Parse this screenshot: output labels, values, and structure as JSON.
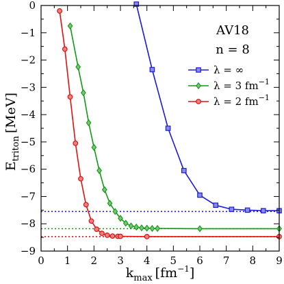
{
  "chart_data": {
    "type": "line",
    "annotations": [
      "AV18",
      "n = 8"
    ],
    "xlabel": {
      "main": "k",
      "sub": "max",
      "unit": "[fm",
      "sup": "−1",
      "close": "]"
    },
    "ylabel": {
      "main": "E",
      "sub": "triton",
      "unit": "[MeV]"
    },
    "xlim": [
      0,
      9
    ],
    "ylim": [
      -9,
      0
    ],
    "x_ticks": [
      0,
      1,
      2,
      3,
      4,
      5,
      6,
      7,
      8,
      9
    ],
    "y_ticks": [
      0,
      -1,
      -2,
      -3,
      -4,
      -5,
      -6,
      -7,
      -8,
      -9
    ],
    "x_tick_labels": [
      "0",
      "1",
      "2",
      "3",
      "4",
      "5",
      "6",
      "7",
      "8",
      "9"
    ],
    "y_tick_labels": [
      "0",
      "−1",
      "−2",
      "−3",
      "−4",
      "−5",
      "−6",
      "−7",
      "−8",
      "−9"
    ],
    "legend_position": "right",
    "series": [
      {
        "name": "λ = ∞",
        "name_main": "λ = ∞",
        "name_sup": "",
        "color": "#1a1adb",
        "marker": "square",
        "reference": -7.55,
        "x": [
          3.6,
          4.2,
          4.8,
          5.4,
          6.0,
          6.6,
          7.2,
          7.8,
          8.4,
          9.0
        ],
        "y": [
          0.05,
          -2.35,
          -4.5,
          -6.05,
          -6.95,
          -7.32,
          -7.47,
          -7.5,
          -7.52,
          -7.52
        ]
      },
      {
        "name": "λ = 3 fm−1",
        "name_main": "λ = 3 fm",
        "name_sup": "−1",
        "color": "#109a10",
        "marker": "diamond",
        "reference": -8.18,
        "x": [
          1.1,
          1.4,
          1.6,
          1.8,
          2.0,
          2.2,
          2.4,
          2.6,
          2.8,
          3.0,
          3.2,
          3.4,
          3.6,
          3.8,
          4.0,
          4.2,
          4.4,
          6.0,
          9.0
        ],
        "y": [
          -0.75,
          -2.25,
          -3.2,
          -4.3,
          -5.2,
          -6.05,
          -6.75,
          -7.25,
          -7.55,
          -7.8,
          -7.98,
          -8.08,
          -8.12,
          -8.15,
          -8.16,
          -8.17,
          -8.17,
          -8.18,
          -8.18
        ]
      },
      {
        "name": "λ = 2 fm−1",
        "name_main": "λ = 2 fm",
        "name_sup": "−1",
        "color": "#e01010",
        "marker": "circle",
        "reference": -8.47,
        "x": [
          0.7,
          0.9,
          1.1,
          1.3,
          1.5,
          1.7,
          1.9,
          2.1,
          2.3,
          2.5,
          2.7,
          2.9,
          3.0,
          4.0,
          9.0
        ],
        "y": [
          -0.2,
          -1.6,
          -3.35,
          -5.05,
          -6.35,
          -7.3,
          -7.9,
          -8.2,
          -8.35,
          -8.42,
          -8.45,
          -8.46,
          -8.46,
          -8.47,
          -8.47
        ]
      }
    ]
  }
}
